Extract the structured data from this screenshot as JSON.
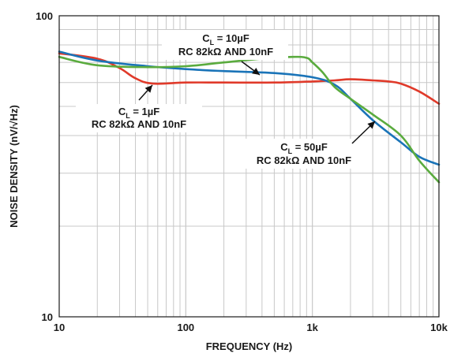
{
  "chart_data": {
    "type": "line",
    "title": "",
    "xlabel": "FREQUENCY (Hz)",
    "ylabel": "NOISE DENSITY (nV/√Hz)",
    "xscale": "log",
    "yscale": "log",
    "xlim": [
      10,
      10000
    ],
    "ylim": [
      10,
      100
    ],
    "grid": true,
    "x_tick_labels": [
      "10",
      "100",
      "1k",
      "10k"
    ],
    "y_tick_labels": [
      "10",
      "100"
    ],
    "colors": {
      "red": "#e03a2a",
      "blue": "#1a74b8",
      "green": "#5aab3e",
      "grid": "#c8c8c8",
      "frame": "#1a1a1a"
    },
    "series": [
      {
        "color": "red",
        "points": [
          [
            10,
            75
          ],
          [
            20,
            72
          ],
          [
            30,
            67
          ],
          [
            40,
            62
          ],
          [
            55,
            59.5
          ],
          [
            100,
            60
          ],
          [
            200,
            60
          ],
          [
            500,
            60
          ],
          [
            1000,
            60.5
          ],
          [
            1500,
            61
          ],
          [
            2000,
            61.5
          ],
          [
            3000,
            61
          ],
          [
            4000,
            60.5
          ],
          [
            5000,
            59.5
          ],
          [
            7000,
            56
          ],
          [
            10000,
            51
          ]
        ]
      },
      {
        "color": "blue",
        "points": [
          [
            10,
            76
          ],
          [
            20,
            71
          ],
          [
            50,
            68
          ],
          [
            100,
            66.5
          ],
          [
            200,
            65.5
          ],
          [
            500,
            64.5
          ],
          [
            1000,
            62.5
          ],
          [
            1500,
            59
          ],
          [
            2000,
            53
          ],
          [
            3000,
            45
          ],
          [
            5000,
            38
          ],
          [
            7000,
            34
          ],
          [
            10000,
            32
          ]
        ]
      },
      {
        "color": "green",
        "points": [
          [
            10,
            73
          ],
          [
            20,
            68.5
          ],
          [
            50,
            67.5
          ],
          [
            100,
            68
          ],
          [
            200,
            70
          ],
          [
            400,
            72
          ],
          [
            700,
            73
          ],
          [
            900,
            72.5
          ],
          [
            1000,
            70
          ],
          [
            1200,
            65
          ],
          [
            1500,
            58
          ],
          [
            2000,
            53
          ],
          [
            3000,
            47
          ],
          [
            5000,
            40
          ],
          [
            7000,
            33
          ],
          [
            10000,
            28
          ]
        ]
      }
    ],
    "annotations": [
      {
        "line1_main": "C",
        "line1_sub": "L",
        "line1_rest": " = 1µF",
        "line2": "RC 82kΩ AND 10nF"
      },
      {
        "line1_main": "C",
        "line1_sub": "L",
        "line1_rest": " = 10µF",
        "line2": "RC 82kΩ AND 10nF"
      },
      {
        "line1_main": "C",
        "line1_sub": "L",
        "line1_rest": " = 50µF",
        "line2": "RC 82kΩ AND 10nF"
      }
    ]
  }
}
